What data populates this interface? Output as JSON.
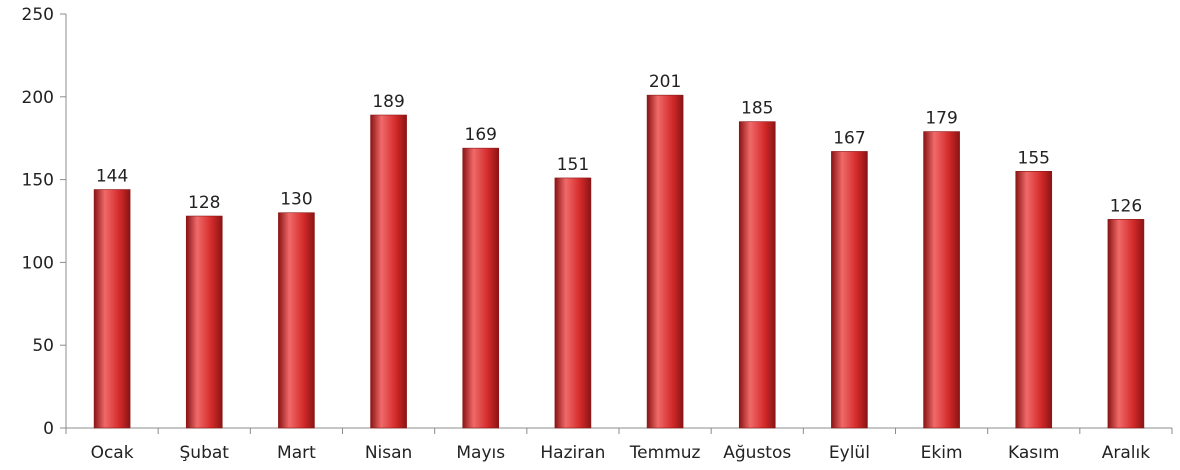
{
  "chart_data": {
    "type": "bar",
    "categories": [
      "Ocak",
      "Şubat",
      "Mart",
      "Nisan",
      "Mayıs",
      "Haziran",
      "Temmuz",
      "Ağustos",
      "Eylül",
      "Ekim",
      "Kasım",
      "Aralık"
    ],
    "values": [
      144,
      128,
      130,
      189,
      169,
      151,
      201,
      185,
      167,
      179,
      155,
      126
    ],
    "yticks": [
      0,
      50,
      100,
      150,
      200,
      250
    ],
    "ylim": [
      0,
      250
    ],
    "title": "",
    "xlabel": "",
    "ylabel": "",
    "grid": false,
    "legend": "none",
    "data_labels": true,
    "colors": {
      "bar_fill": "#d42a2a",
      "bar_highlight": "#f06a6a",
      "bar_shadow": "#8a1414",
      "axis": "#8c8c8c"
    }
  }
}
